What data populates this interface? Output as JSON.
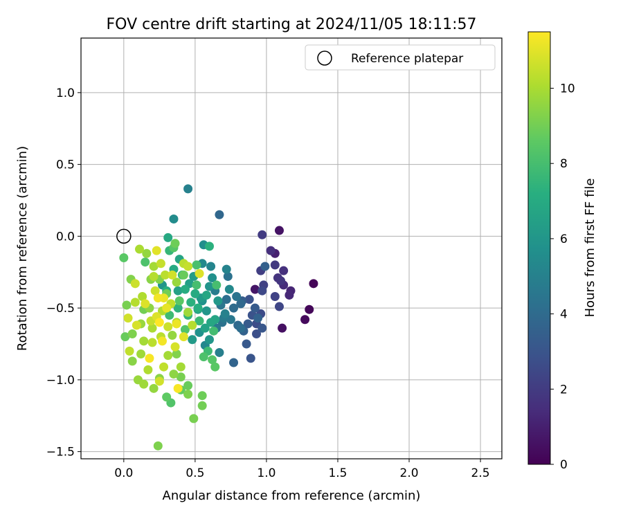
{
  "chart_data": {
    "type": "scatter",
    "title": "FOV centre drift starting at 2024/11/05 18:11:57",
    "xlabel": "Angular distance from reference (arcmin)",
    "ylabel": "Rotation from reference (arcmin)",
    "xlim": [
      -0.3,
      2.65
    ],
    "ylim": [
      -1.55,
      1.38
    ],
    "xticks": [
      0.0,
      0.5,
      1.0,
      1.5,
      2.0,
      2.5
    ],
    "yticks": [
      -1.5,
      -1.0,
      -0.5,
      0.0,
      0.5,
      1.0
    ],
    "grid": true,
    "legend": {
      "position": "top-right",
      "entries": [
        "Reference platepar"
      ]
    },
    "reference_point": {
      "x": 0.0,
      "y": 0.0,
      "label": "Reference platepar"
    },
    "colorbar": {
      "label": "Hours from first FF file",
      "range": [
        0,
        11.5
      ],
      "ticks": [
        0,
        2,
        4,
        6,
        8,
        10
      ],
      "colormap": "viridis"
    },
    "series": [
      {
        "color_by": "hours",
        "points": [
          [
            1.33,
            -0.33,
            0.1
          ],
          [
            1.3,
            -0.51,
            0.2
          ],
          [
            1.27,
            -0.58,
            0.3
          ],
          [
            1.11,
            -0.64,
            0.5
          ],
          [
            1.09,
            0.04,
            0.6
          ],
          [
            0.92,
            -0.37,
            0.7
          ],
          [
            1.06,
            -0.12,
            1.0
          ],
          [
            1.17,
            -0.38,
            1.2
          ],
          [
            1.16,
            -0.41,
            1.3
          ],
          [
            1.12,
            -0.34,
            1.4
          ],
          [
            1.03,
            -0.1,
            1.5
          ],
          [
            1.12,
            -0.24,
            1.6
          ],
          [
            1.08,
            -0.29,
            1.7
          ],
          [
            1.1,
            -0.31,
            1.8
          ],
          [
            1.06,
            -0.2,
            1.9
          ],
          [
            0.97,
            0.01,
            2.0
          ],
          [
            0.96,
            -0.24,
            2.1
          ],
          [
            0.98,
            -0.34,
            2.2
          ],
          [
            1.06,
            -0.42,
            2.3
          ],
          [
            1.09,
            -0.49,
            2.4
          ],
          [
            0.97,
            -0.38,
            2.5
          ],
          [
            0.96,
            -0.54,
            2.6
          ],
          [
            0.93,
            -0.61,
            2.7
          ],
          [
            0.93,
            -0.68,
            2.8
          ],
          [
            0.88,
            -0.44,
            2.9
          ],
          [
            0.89,
            -0.85,
            3.0
          ],
          [
            0.97,
            -0.64,
            3.1
          ],
          [
            0.86,
            -0.75,
            3.2
          ],
          [
            0.92,
            -0.5,
            3.3
          ],
          [
            0.83,
            -0.45,
            3.4
          ],
          [
            0.99,
            -0.21,
            3.5
          ],
          [
            0.94,
            -0.57,
            3.6
          ],
          [
            0.77,
            -0.88,
            3.7
          ],
          [
            0.67,
            0.15,
            3.8
          ],
          [
            0.8,
            -0.62,
            3.9
          ],
          [
            0.77,
            -0.5,
            4.0
          ],
          [
            0.82,
            -0.64,
            4.1
          ],
          [
            0.72,
            -0.44,
            4.2
          ],
          [
            0.73,
            -0.28,
            4.3
          ],
          [
            0.79,
            -0.42,
            4.4
          ],
          [
            0.68,
            -0.48,
            4.5
          ],
          [
            0.65,
            -0.64,
            4.6
          ],
          [
            0.7,
            -0.57,
            4.7
          ],
          [
            0.64,
            -0.38,
            4.8
          ],
          [
            0.67,
            -0.81,
            4.9
          ],
          [
            0.45,
            0.33,
            5.0
          ],
          [
            0.72,
            -0.23,
            5.1
          ],
          [
            0.61,
            -0.21,
            5.2
          ],
          [
            0.57,
            -0.76,
            5.3
          ],
          [
            0.55,
            -0.19,
            5.4
          ],
          [
            0.35,
            0.12,
            5.5
          ],
          [
            0.56,
            -0.06,
            5.6
          ],
          [
            0.62,
            -0.29,
            5.7
          ],
          [
            0.55,
            -0.45,
            5.8
          ],
          [
            0.6,
            -0.35,
            5.9
          ],
          [
            0.58,
            -0.52,
            6.0
          ],
          [
            0.66,
            -0.45,
            6.1
          ],
          [
            0.54,
            -0.43,
            6.2
          ],
          [
            0.49,
            -0.28,
            6.3
          ],
          [
            0.46,
            -0.33,
            6.4
          ],
          [
            0.52,
            -0.51,
            6.5
          ],
          [
            0.57,
            -0.64,
            6.6
          ],
          [
            0.64,
            -0.58,
            6.7
          ],
          [
            0.61,
            -0.6,
            6.8
          ],
          [
            0.31,
            -0.01,
            6.9
          ],
          [
            0.35,
            -0.23,
            7.0
          ],
          [
            0.43,
            -0.37,
            7.1
          ],
          [
            0.3,
            -0.38,
            7.2
          ],
          [
            0.6,
            -0.07,
            7.3
          ],
          [
            0.38,
            -0.5,
            7.4
          ],
          [
            0.45,
            -0.55,
            7.5
          ],
          [
            0.41,
            -0.27,
            7.6
          ],
          [
            0.53,
            -0.59,
            7.7
          ],
          [
            0.59,
            -0.8,
            7.8
          ],
          [
            0.63,
            -0.66,
            7.9
          ],
          [
            0.65,
            -0.34,
            8.0
          ],
          [
            0.51,
            -0.2,
            8.1
          ],
          [
            0.56,
            -0.84,
            8.2
          ],
          [
            0.43,
            -0.65,
            8.3
          ],
          [
            0.62,
            -0.86,
            8.4
          ],
          [
            0.64,
            -0.91,
            8.5
          ],
          [
            0.3,
            -1.12,
            8.6
          ],
          [
            0.4,
            -1.07,
            8.7
          ],
          [
            0.45,
            -1.04,
            8.8
          ],
          [
            0.55,
            -1.11,
            8.9
          ],
          [
            0.55,
            -1.18,
            9.0
          ],
          [
            0.49,
            -1.27,
            9.1
          ],
          [
            0.24,
            -1.46,
            9.2
          ],
          [
            0.37,
            -0.82,
            9.3
          ],
          [
            0.25,
            -0.99,
            9.4
          ],
          [
            0.35,
            -0.96,
            9.5
          ],
          [
            0.21,
            -1.06,
            9.6
          ],
          [
            0.1,
            -1.0,
            9.7
          ],
          [
            0.14,
            -1.03,
            9.8
          ],
          [
            0.4,
            -0.91,
            9.9
          ],
          [
            0.37,
            -0.6,
            10.0
          ],
          [
            0.13,
            -0.42,
            10.1
          ],
          [
            0.21,
            -0.28,
            10.2
          ],
          [
            0.29,
            -0.27,
            10.3
          ],
          [
            0.33,
            -0.47,
            10.4
          ],
          [
            0.19,
            -0.59,
            10.5
          ],
          [
            0.08,
            -0.33,
            10.6
          ],
          [
            0.03,
            -0.57,
            10.7
          ],
          [
            0.09,
            -0.62,
            10.8
          ],
          [
            0.15,
            -0.47,
            10.9
          ],
          [
            0.23,
            -0.1,
            11.0
          ],
          [
            0.3,
            -0.5,
            11.1
          ],
          [
            0.37,
            -0.61,
            11.2
          ],
          [
            0.27,
            -0.73,
            11.3
          ],
          [
            0.18,
            -0.85,
            11.4
          ],
          [
            0.15,
            -0.18,
            8.2
          ],
          [
            0.14,
            -0.51,
            9.0
          ],
          [
            0.18,
            -0.5,
            9.5
          ],
          [
            0.06,
            -0.68,
            9.2
          ],
          [
            0.12,
            -0.82,
            9.8
          ],
          [
            0.26,
            -0.7,
            10.3
          ],
          [
            0.36,
            -0.77,
            10.8
          ],
          [
            0.42,
            -0.7,
            11.0
          ],
          [
            0.2,
            -0.64,
            10.0
          ],
          [
            0.22,
            -0.38,
            10.6
          ],
          [
            0.28,
            -0.43,
            11.2
          ],
          [
            0.27,
            -0.52,
            10.1
          ],
          [
            0.02,
            -0.48,
            9.1
          ],
          [
            0.05,
            -0.3,
            9.3
          ],
          [
            0.01,
            -0.7,
            8.8
          ],
          [
            0.16,
            -0.12,
            9.6
          ],
          [
            0.23,
            -0.56,
            10.9
          ],
          [
            0.31,
            -0.83,
            9.9
          ],
          [
            0.04,
            -0.8,
            10.4
          ],
          [
            0.12,
            -0.61,
            9.7
          ],
          [
            0.25,
            -0.6,
            11.5
          ],
          [
            0.34,
            -0.27,
            10.7
          ],
          [
            0.3,
            -0.4,
            9.0
          ],
          [
            0.39,
            -0.45,
            8.5
          ],
          [
            0.32,
            -0.55,
            7.8
          ],
          [
            0.47,
            -0.46,
            7.3
          ],
          [
            0.42,
            -0.27,
            8.8
          ],
          [
            0.48,
            -0.62,
            10.2
          ],
          [
            0.5,
            -0.4,
            7.0
          ],
          [
            0.38,
            -0.38,
            6.5
          ],
          [
            0.45,
            -0.21,
            10.5
          ],
          [
            0.53,
            -0.26,
            10.9
          ],
          [
            0.51,
            -0.34,
            8.0
          ],
          [
            0.58,
            -0.41,
            6.8
          ],
          [
            0.48,
            -0.72,
            6.2
          ],
          [
            0.53,
            -0.67,
            5.8
          ],
          [
            0.6,
            -0.72,
            6.0
          ],
          [
            0.69,
            -0.6,
            4.3
          ],
          [
            0.71,
            -0.54,
            5.0
          ],
          [
            0.75,
            -0.58,
            4.6
          ],
          [
            0.74,
            -0.37,
            5.4
          ],
          [
            0.82,
            -0.47,
            3.9
          ],
          [
            0.87,
            -0.61,
            3.3
          ],
          [
            0.9,
            -0.55,
            2.9
          ],
          [
            0.84,
            -0.66,
            3.6
          ],
          [
            0.27,
            -0.34,
            6.0
          ],
          [
            0.39,
            -0.16,
            6.7
          ],
          [
            0.35,
            -0.08,
            8.4
          ],
          [
            0.21,
            -0.21,
            9.9
          ],
          [
            0.25,
            -0.3,
            9.3
          ],
          [
            0.24,
            -0.43,
            11.3
          ],
          [
            0.31,
            -0.63,
            10.6
          ],
          [
            0.08,
            -0.46,
            10.2
          ],
          [
            0.11,
            -0.09,
            10.0
          ],
          [
            0.0,
            -0.15,
            8.5
          ],
          [
            0.06,
            -0.87,
            9.4
          ],
          [
            0.17,
            -0.93,
            10.1
          ],
          [
            0.28,
            -0.91,
            10.4
          ],
          [
            0.4,
            -0.98,
            9.1
          ],
          [
            0.33,
            -1.16,
            8.3
          ],
          [
            0.45,
            -1.1,
            9.2
          ],
          [
            0.38,
            -1.06,
            11.4
          ],
          [
            0.25,
            -1.01,
            10.7
          ],
          [
            0.34,
            -0.69,
            9.6
          ],
          [
            0.2,
            -0.74,
            10.3
          ],
          [
            0.14,
            -0.73,
            9.9
          ],
          [
            0.19,
            -0.3,
            9.4
          ],
          [
            0.37,
            -0.32,
            9.7
          ],
          [
            0.42,
            -0.19,
            10.3
          ],
          [
            0.45,
            -0.53,
            9.8
          ],
          [
            0.52,
            -0.5,
            7.2
          ],
          [
            0.32,
            -0.1,
            7.6
          ],
          [
            0.36,
            -0.05,
            8.9
          ],
          [
            0.26,
            -0.19,
            10.5
          ]
        ]
      }
    ]
  }
}
